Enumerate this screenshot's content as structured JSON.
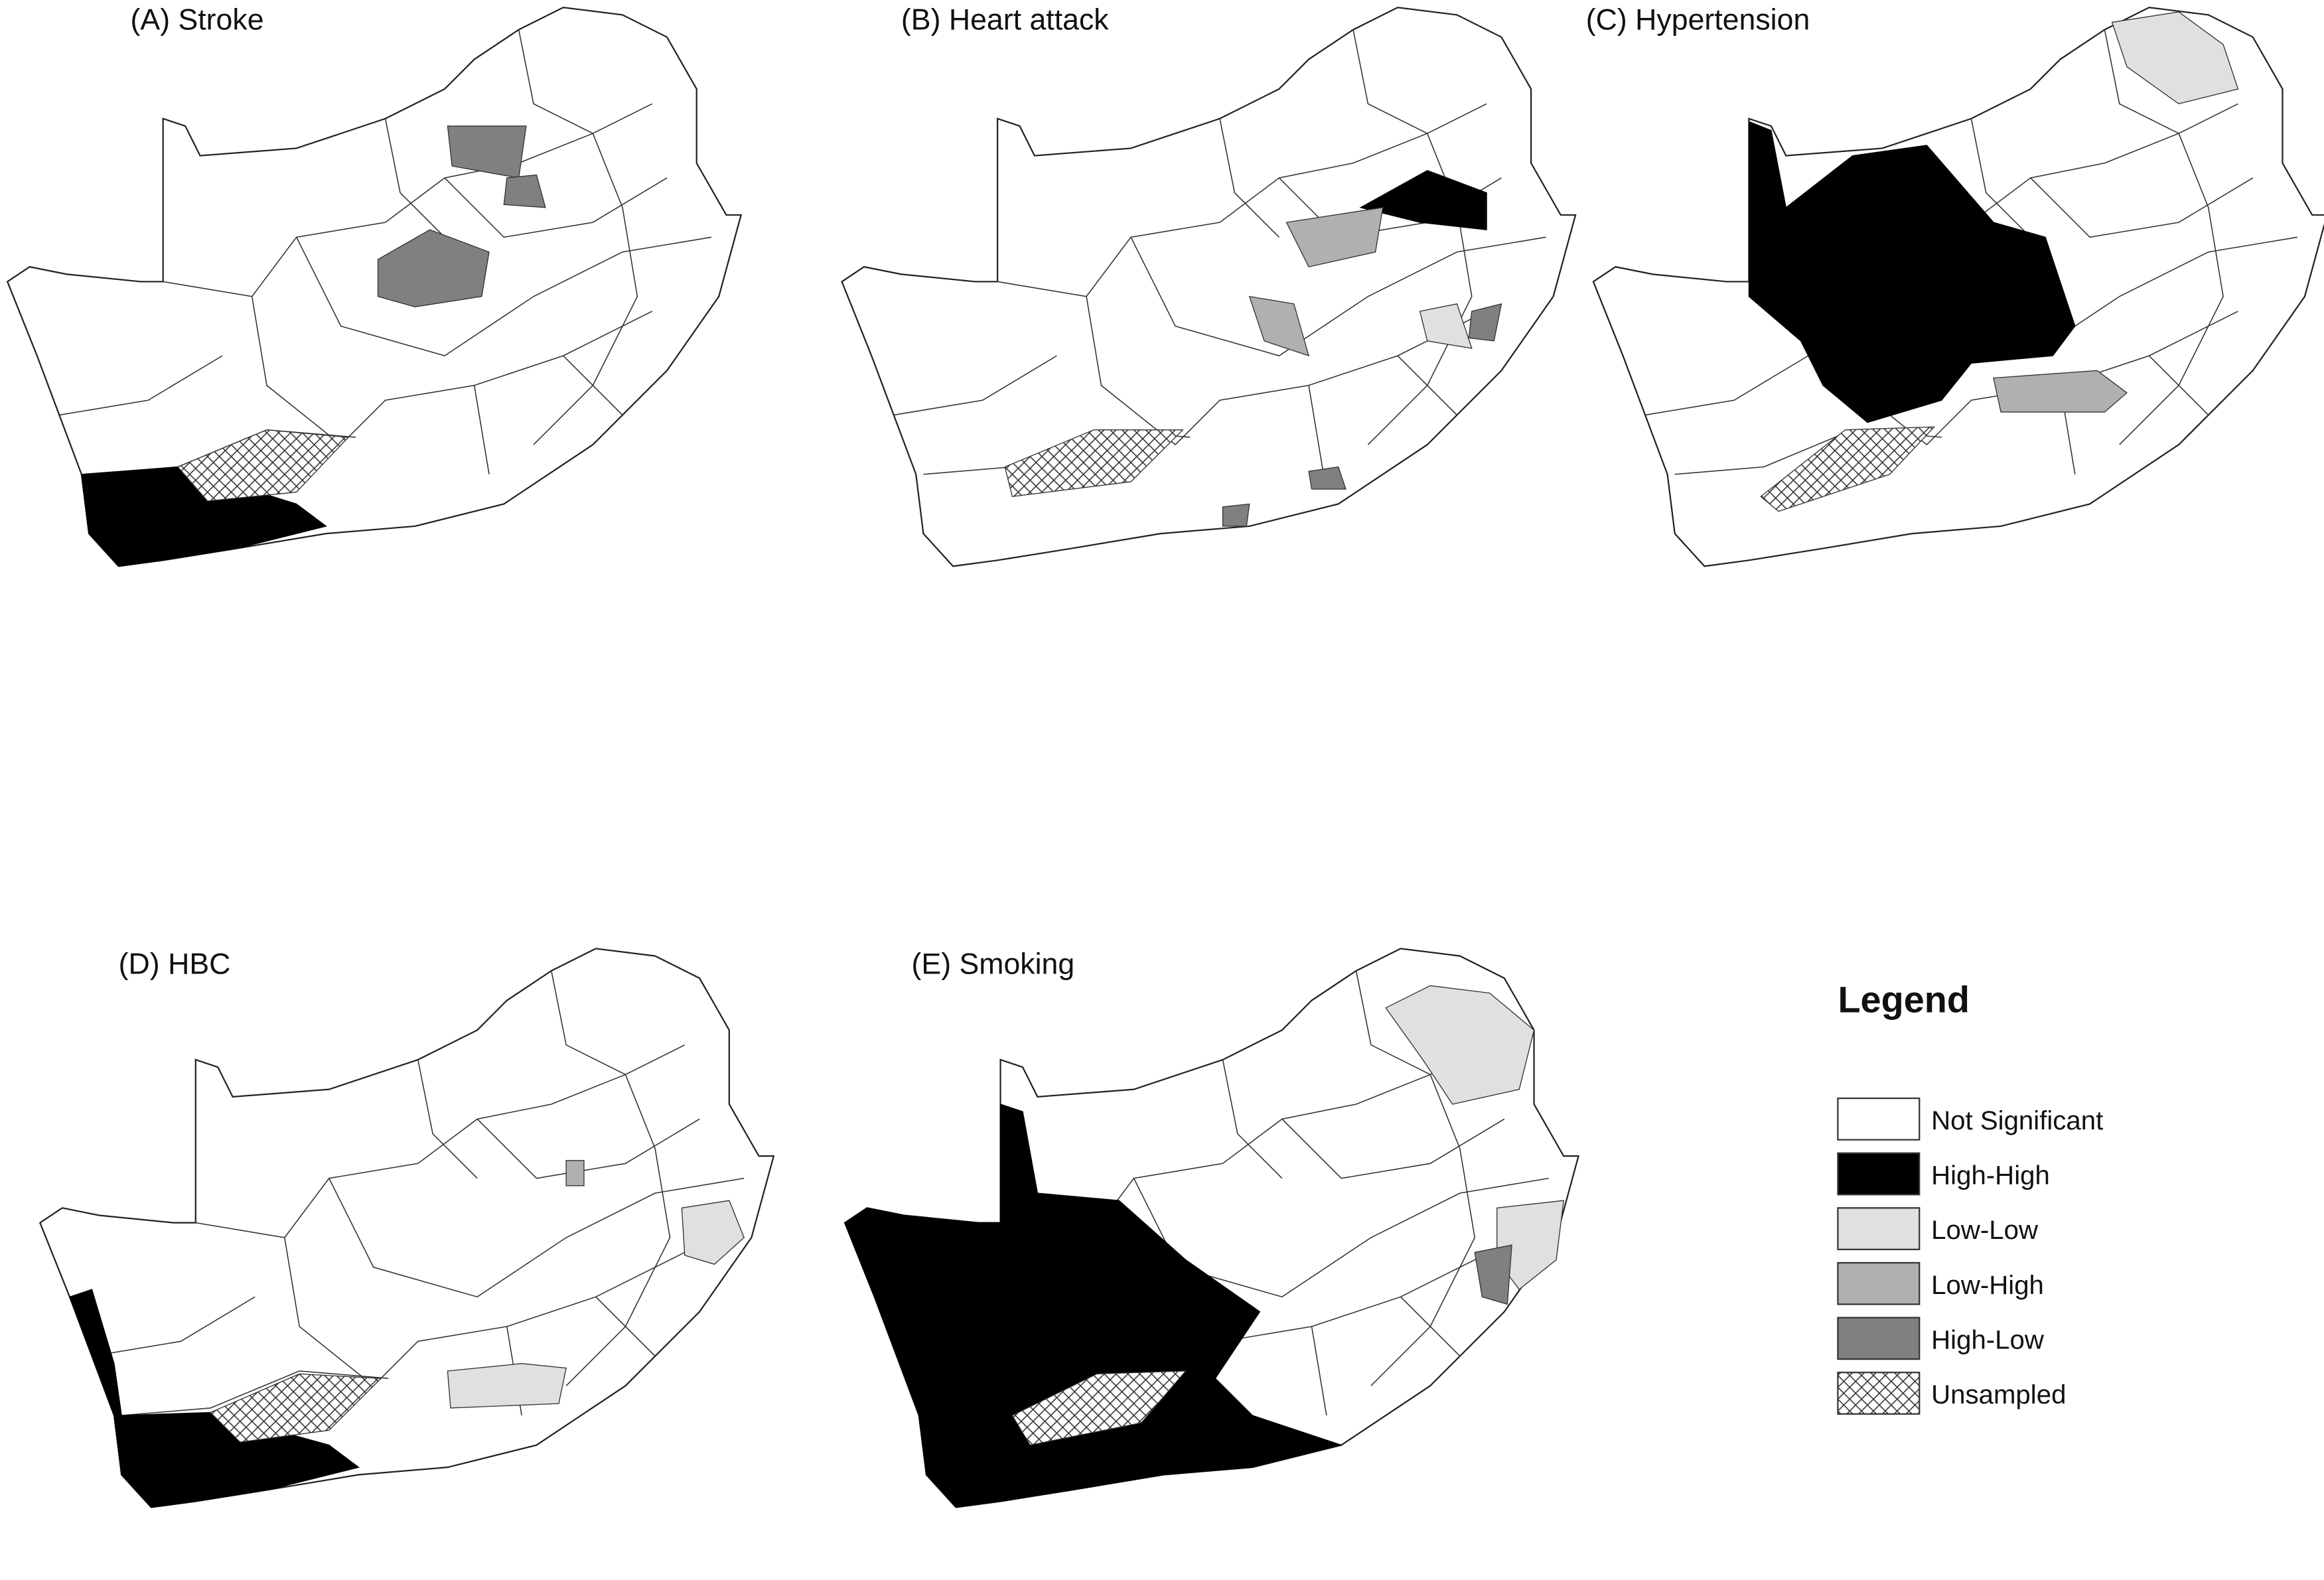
{
  "panels": [
    {
      "title": "(A) Stroke"
    },
    {
      "title": "(B) Heart attack"
    },
    {
      "title": "(C) Hypertension"
    },
    {
      "title": "(D) HBC"
    },
    {
      "title": "(E) Smoking"
    }
  ],
  "legend": {
    "title": "Legend",
    "items": [
      "Not Significant",
      "High-High",
      "Low-Low",
      "Low-High",
      "High-Low",
      "Unsampled"
    ]
  }
}
